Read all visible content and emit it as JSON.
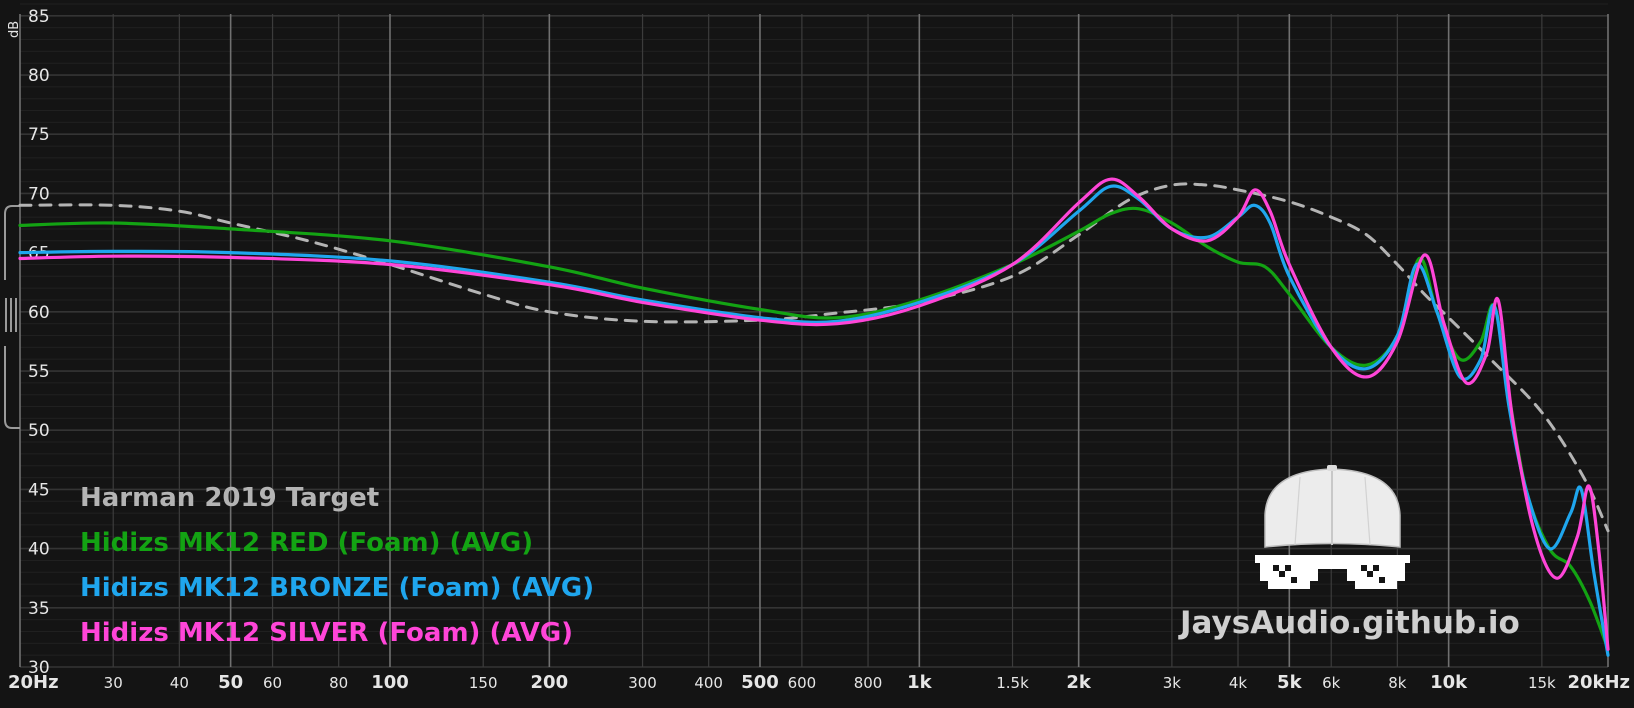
{
  "chart_data": {
    "type": "line",
    "title": "",
    "xlabel": "",
    "ylabel": "dB",
    "x_scale": "log",
    "xlim": [
      20,
      20000
    ],
    "ylim": [
      30,
      86
    ],
    "grid": true,
    "legend_position": "bottom-left",
    "y_ticks": [
      30,
      35,
      40,
      45,
      50,
      55,
      60,
      65,
      70,
      75,
      80,
      85
    ],
    "y_tick_labels": [
      "30",
      "35",
      "40",
      "45",
      "50",
      "55",
      "60",
      "65",
      "70",
      "75",
      "80",
      "85"
    ],
    "x_ticks": [
      20,
      30,
      40,
      50,
      60,
      80,
      100,
      150,
      200,
      300,
      400,
      500,
      600,
      800,
      1000,
      1500,
      2000,
      3000,
      4000,
      5000,
      6000,
      8000,
      10000,
      15000,
      20000
    ],
    "x_tick_labels": [
      "20Hz",
      "30",
      "40",
      "50",
      "60",
      "80",
      "100",
      "150",
      "200",
      "300",
      "400",
      "500",
      "600",
      "800",
      "1k",
      "1.5k",
      "2k",
      "3k",
      "4k",
      "5k",
      "6k",
      "8k",
      "10k",
      "15k",
      "20kHz"
    ],
    "x_major_ticks": [
      20,
      50,
      100,
      200,
      500,
      1000,
      2000,
      5000,
      10000,
      20000
    ],
    "series": [
      {
        "name": "Harman 2019 Target",
        "color": "#b4b4b4",
        "dashed": true,
        "x": [
          20,
          30,
          40,
          50,
          70,
          100,
          150,
          200,
          300,
          500,
          700,
          1000,
          1500,
          2000,
          2500,
          3000,
          3500,
          4000,
          5000,
          6000,
          7000,
          8000,
          9000,
          10000,
          12000,
          15000,
          18000,
          20000
        ],
        "values": [
          69.0,
          69.0,
          68.5,
          67.5,
          66.0,
          64.0,
          61.5,
          60.0,
          59.2,
          59.3,
          59.9,
          60.8,
          63.0,
          66.5,
          69.5,
          70.7,
          70.7,
          70.3,
          69.3,
          68.0,
          66.5,
          64.0,
          61.5,
          59.5,
          56.0,
          51.5,
          46.0,
          41.5
        ]
      },
      {
        "name": "Hidizs MK12 RED (Foam) (AVG)",
        "color": "#13a313",
        "dashed": false,
        "x": [
          20,
          30,
          50,
          100,
          200,
          300,
          500,
          700,
          1000,
          1500,
          2000,
          2300,
          2600,
          3000,
          3500,
          4000,
          4500,
          5000,
          6000,
          7000,
          8000,
          8800,
          9500,
          10500,
          11500,
          12200,
          13000,
          14000,
          15500,
          17000,
          18500,
          20000
        ],
        "values": [
          67.3,
          67.5,
          67.0,
          66.0,
          63.8,
          62.0,
          60.2,
          59.5,
          61.0,
          64.0,
          66.8,
          68.3,
          68.7,
          67.5,
          65.5,
          64.2,
          63.8,
          61.5,
          57.0,
          55.5,
          58.0,
          64.5,
          60.0,
          56.0,
          57.5,
          60.5,
          53.0,
          45.0,
          40.0,
          38.5,
          35.5,
          31.5
        ]
      },
      {
        "name": "Hidizs MK12 BRONZE (Foam) (AVG)",
        "color": "#1fa6ee",
        "dashed": false,
        "x": [
          20,
          30,
          50,
          100,
          200,
          300,
          500,
          700,
          1000,
          1500,
          2000,
          2300,
          2600,
          3000,
          3500,
          4000,
          4300,
          4600,
          5000,
          6000,
          7000,
          8000,
          8700,
          9500,
          10500,
          11500,
          12200,
          13000,
          14000,
          15500,
          17000,
          17800,
          18800,
          20000
        ],
        "values": [
          65.0,
          65.1,
          65.0,
          64.3,
          62.5,
          61.0,
          59.5,
          59.2,
          60.8,
          64.0,
          68.5,
          70.6,
          69.5,
          67.0,
          66.3,
          68.0,
          69.0,
          67.5,
          63.0,
          57.0,
          55.2,
          58.0,
          64.0,
          60.0,
          54.5,
          56.0,
          60.5,
          52.0,
          45.0,
          40.0,
          43.0,
          45.0,
          38.0,
          31.0
        ]
      },
      {
        "name": "Hidizs MK12 SILVER (Foam) (AVG)",
        "color": "#ff45d8",
        "dashed": false,
        "x": [
          20,
          30,
          50,
          100,
          200,
          300,
          500,
          700,
          1000,
          1500,
          2000,
          2300,
          2600,
          3000,
          3500,
          4000,
          4300,
          4600,
          5000,
          6000,
          7000,
          8000,
          9000,
          9800,
          10800,
          11800,
          12400,
          13200,
          14500,
          16000,
          17500,
          18400,
          19200,
          20000
        ],
        "values": [
          64.5,
          64.7,
          64.6,
          64.0,
          62.3,
          60.8,
          59.3,
          59.0,
          60.5,
          64.0,
          69.2,
          71.2,
          69.7,
          67.0,
          66.0,
          68.0,
          70.3,
          68.5,
          64.0,
          57.0,
          54.5,
          57.5,
          64.8,
          59.0,
          54.0,
          56.5,
          61.0,
          51.0,
          41.5,
          37.5,
          41.0,
          45.3,
          40.0,
          31.5
        ]
      }
    ]
  },
  "watermark": "JaysAudio.github.io"
}
